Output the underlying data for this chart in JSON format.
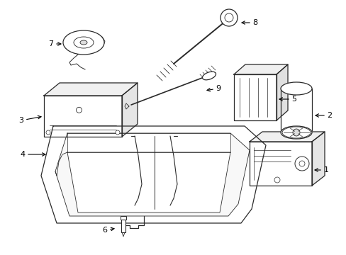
{
  "background_color": "#ffffff",
  "line_color": "#2a2a2a",
  "label_color": "#000000",
  "fig_width": 4.89,
  "fig_height": 3.6,
  "dpi": 100,
  "lw": 0.9
}
